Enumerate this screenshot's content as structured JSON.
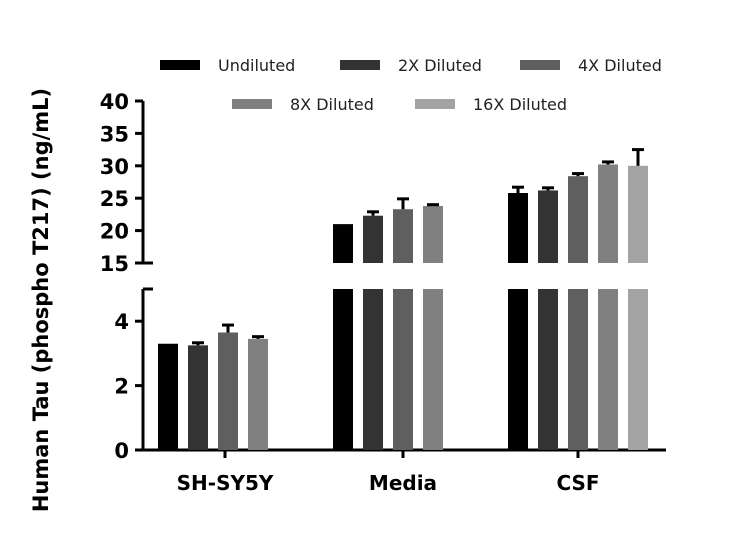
{
  "chart_data": {
    "type": "bar",
    "title": "",
    "xlabel": "",
    "ylabel": "Human Tau (phospho T217) (ng/mL)",
    "y_axis_break": {
      "lower_range": [
        0,
        5
      ],
      "upper_range": [
        15,
        40
      ]
    },
    "lower_ticks": [
      "0",
      "2",
      "4"
    ],
    "upper_ticks": [
      "15",
      "20",
      "25",
      "30",
      "35",
      "40"
    ],
    "legend_placement": "top",
    "categories": [
      "SH-SY5Y",
      "Media",
      "CSF"
    ],
    "series": [
      {
        "name": "Undiluted",
        "color": "#000000",
        "values": [
          3.3,
          21.0,
          25.8
        ],
        "errors": [
          0,
          0,
          0.9
        ]
      },
      {
        "name": "2X Diluted",
        "color": "#333333",
        "values": [
          3.25,
          22.3,
          26.2
        ],
        "errors": [
          0.08,
          0.6,
          0.4
        ]
      },
      {
        "name": "4X Diluted",
        "color": "#5f5f5f",
        "values": [
          3.65,
          23.3,
          28.4
        ],
        "errors": [
          0.23,
          1.6,
          0.4
        ]
      },
      {
        "name": "8X Diluted",
        "color": "#808080",
        "values": [
          3.45,
          23.8,
          30.2
        ],
        "errors": [
          0.07,
          0.2,
          0.4
        ]
      },
      {
        "name": "16X Diluted",
        "color": "#a3a3a3",
        "values": [
          null,
          null,
          30.0
        ],
        "errors": [
          null,
          null,
          2.5
        ]
      }
    ]
  }
}
